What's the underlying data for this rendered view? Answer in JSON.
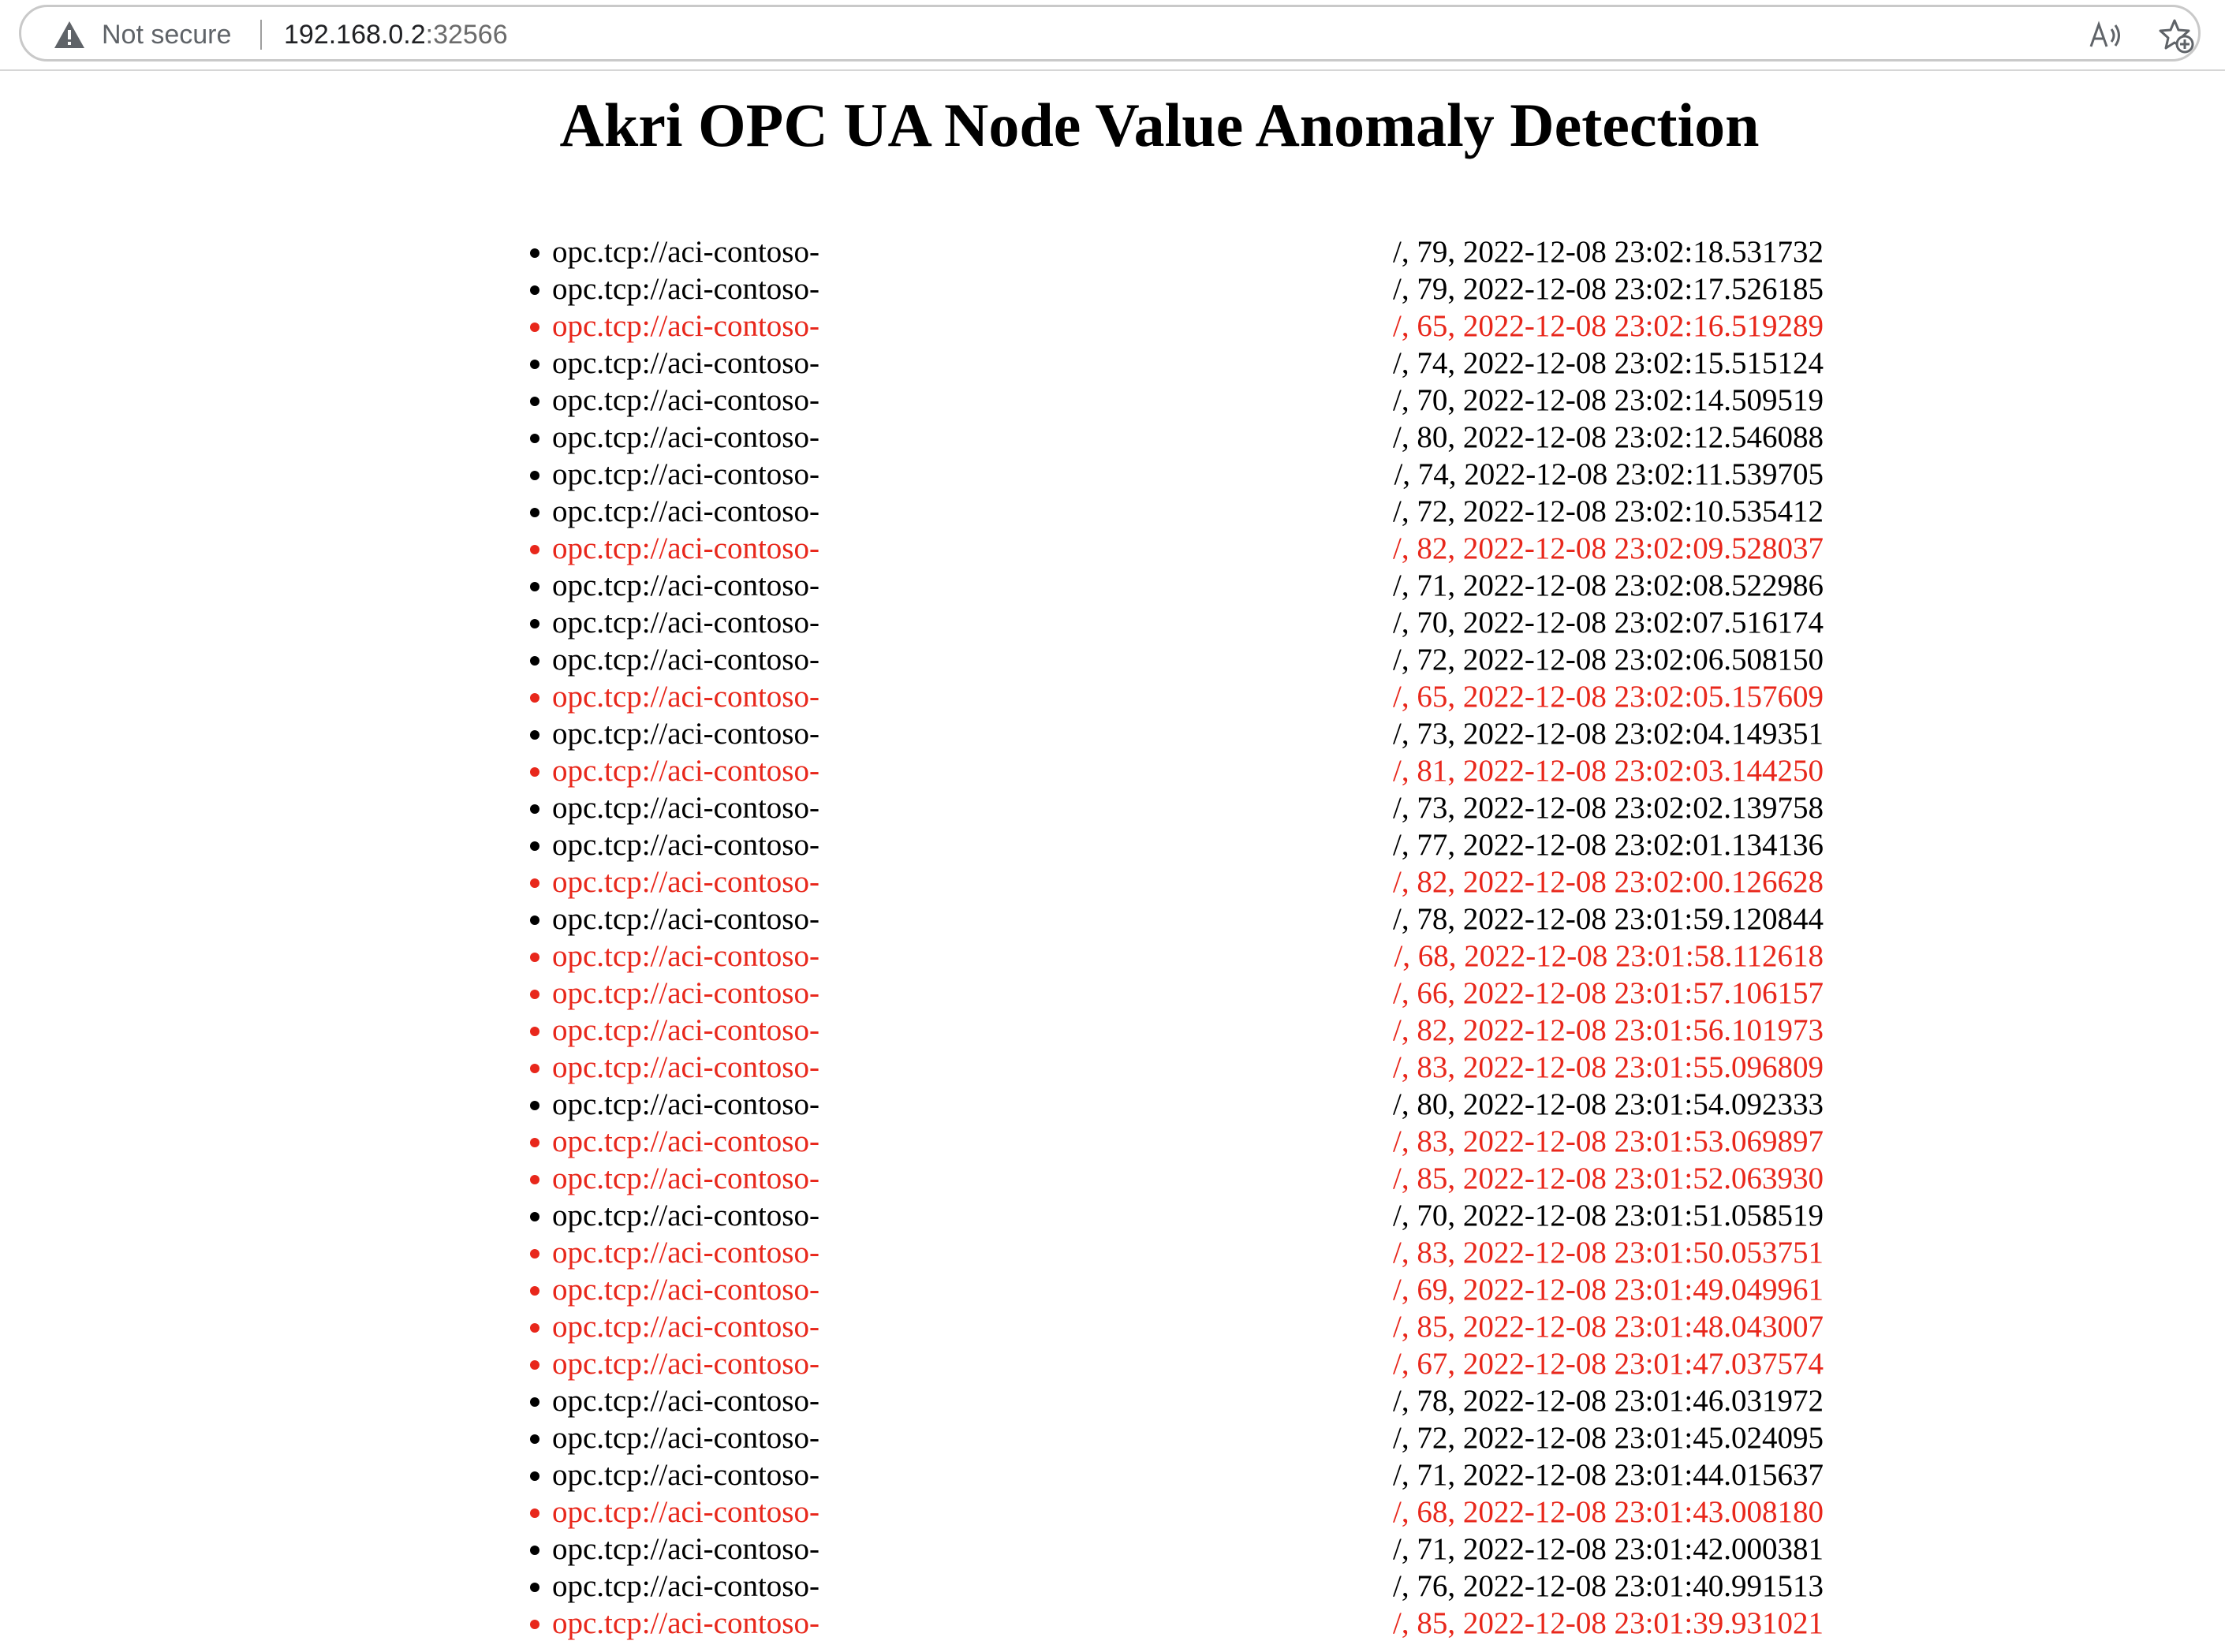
{
  "browser": {
    "security_label": "Not secure",
    "url_host": "192.168.0.2",
    "url_port": ":32566",
    "icons": [
      "warning-icon",
      "read-aloud-icon",
      "add-favorite-icon"
    ]
  },
  "page": {
    "title": "Akri OPC UA Node Value Anomaly Detection",
    "colors": {
      "normal": "#000000",
      "anomaly": "#e8271b"
    },
    "entries": [
      {
        "endpoint": "opc.tcp://aci-contoso-",
        "reading": "/, 79, 2022-12-08 23:02:18.531732",
        "anomaly": false
      },
      {
        "endpoint": "opc.tcp://aci-contoso-",
        "reading": "/, 79, 2022-12-08 23:02:17.526185",
        "anomaly": false
      },
      {
        "endpoint": "opc.tcp://aci-contoso-",
        "reading": "/, 65, 2022-12-08 23:02:16.519289",
        "anomaly": true
      },
      {
        "endpoint": "opc.tcp://aci-contoso-",
        "reading": "/, 74, 2022-12-08 23:02:15.515124",
        "anomaly": false
      },
      {
        "endpoint": "opc.tcp://aci-contoso-",
        "reading": "/, 70, 2022-12-08 23:02:14.509519",
        "anomaly": false
      },
      {
        "endpoint": "opc.tcp://aci-contoso-",
        "reading": "/, 80, 2022-12-08 23:02:12.546088",
        "anomaly": false
      },
      {
        "endpoint": "opc.tcp://aci-contoso-",
        "reading": "/, 74, 2022-12-08 23:02:11.539705",
        "anomaly": false
      },
      {
        "endpoint": "opc.tcp://aci-contoso-",
        "reading": "/, 72, 2022-12-08 23:02:10.535412",
        "anomaly": false
      },
      {
        "endpoint": "opc.tcp://aci-contoso-",
        "reading": "/, 82, 2022-12-08 23:02:09.528037",
        "anomaly": true
      },
      {
        "endpoint": "opc.tcp://aci-contoso-",
        "reading": "/, 71, 2022-12-08 23:02:08.522986",
        "anomaly": false
      },
      {
        "endpoint": "opc.tcp://aci-contoso-",
        "reading": "/, 70, 2022-12-08 23:02:07.516174",
        "anomaly": false
      },
      {
        "endpoint": "opc.tcp://aci-contoso-",
        "reading": "/, 72, 2022-12-08 23:02:06.508150",
        "anomaly": false
      },
      {
        "endpoint": "opc.tcp://aci-contoso-",
        "reading": "/, 65, 2022-12-08 23:02:05.157609",
        "anomaly": true
      },
      {
        "endpoint": "opc.tcp://aci-contoso-",
        "reading": "/, 73, 2022-12-08 23:02:04.149351",
        "anomaly": false
      },
      {
        "endpoint": "opc.tcp://aci-contoso-",
        "reading": "/, 81, 2022-12-08 23:02:03.144250",
        "anomaly": true
      },
      {
        "endpoint": "opc.tcp://aci-contoso-",
        "reading": "/, 73, 2022-12-08 23:02:02.139758",
        "anomaly": false
      },
      {
        "endpoint": "opc.tcp://aci-contoso-",
        "reading": "/, 77, 2022-12-08 23:02:01.134136",
        "anomaly": false
      },
      {
        "endpoint": "opc.tcp://aci-contoso-",
        "reading": "/, 82, 2022-12-08 23:02:00.126628",
        "anomaly": true
      },
      {
        "endpoint": "opc.tcp://aci-contoso-",
        "reading": "/, 78, 2022-12-08 23:01:59.120844",
        "anomaly": false
      },
      {
        "endpoint": "opc.tcp://aci-contoso-",
        "reading": "/, 68, 2022-12-08 23:01:58.112618",
        "anomaly": true
      },
      {
        "endpoint": "opc.tcp://aci-contoso-",
        "reading": "/, 66, 2022-12-08 23:01:57.106157",
        "anomaly": true
      },
      {
        "endpoint": "opc.tcp://aci-contoso-",
        "reading": "/, 82, 2022-12-08 23:01:56.101973",
        "anomaly": true
      },
      {
        "endpoint": "opc.tcp://aci-contoso-",
        "reading": "/, 83, 2022-12-08 23:01:55.096809",
        "anomaly": true
      },
      {
        "endpoint": "opc.tcp://aci-contoso-",
        "reading": "/, 80, 2022-12-08 23:01:54.092333",
        "anomaly": false
      },
      {
        "endpoint": "opc.tcp://aci-contoso-",
        "reading": "/, 83, 2022-12-08 23:01:53.069897",
        "anomaly": true
      },
      {
        "endpoint": "opc.tcp://aci-contoso-",
        "reading": "/, 85, 2022-12-08 23:01:52.063930",
        "anomaly": true
      },
      {
        "endpoint": "opc.tcp://aci-contoso-",
        "reading": "/, 70, 2022-12-08 23:01:51.058519",
        "anomaly": false
      },
      {
        "endpoint": "opc.tcp://aci-contoso-",
        "reading": "/, 83, 2022-12-08 23:01:50.053751",
        "anomaly": true
      },
      {
        "endpoint": "opc.tcp://aci-contoso-",
        "reading": "/, 69, 2022-12-08 23:01:49.049961",
        "anomaly": true
      },
      {
        "endpoint": "opc.tcp://aci-contoso-",
        "reading": "/, 85, 2022-12-08 23:01:48.043007",
        "anomaly": true
      },
      {
        "endpoint": "opc.tcp://aci-contoso-",
        "reading": "/, 67, 2022-12-08 23:01:47.037574",
        "anomaly": true
      },
      {
        "endpoint": "opc.tcp://aci-contoso-",
        "reading": "/, 78, 2022-12-08 23:01:46.031972",
        "anomaly": false
      },
      {
        "endpoint": "opc.tcp://aci-contoso-",
        "reading": "/, 72, 2022-12-08 23:01:45.024095",
        "anomaly": false
      },
      {
        "endpoint": "opc.tcp://aci-contoso-",
        "reading": "/, 71, 2022-12-08 23:01:44.015637",
        "anomaly": false
      },
      {
        "endpoint": "opc.tcp://aci-contoso-",
        "reading": "/, 68, 2022-12-08 23:01:43.008180",
        "anomaly": true
      },
      {
        "endpoint": "opc.tcp://aci-contoso-",
        "reading": "/, 71, 2022-12-08 23:01:42.000381",
        "anomaly": false
      },
      {
        "endpoint": "opc.tcp://aci-contoso-",
        "reading": "/, 76, 2022-12-08 23:01:40.991513",
        "anomaly": false
      },
      {
        "endpoint": "opc.tcp://aci-contoso-",
        "reading": "/, 85, 2022-12-08 23:01:39.931021",
        "anomaly": true
      }
    ]
  }
}
